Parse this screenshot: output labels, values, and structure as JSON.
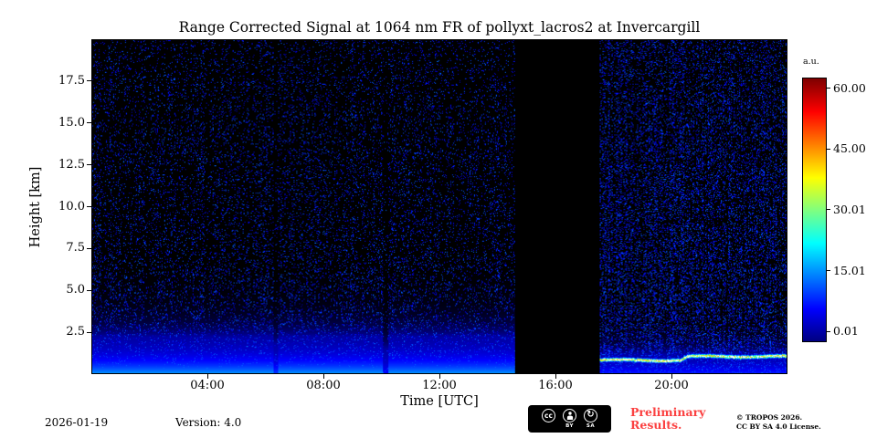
{
  "chart_data": {
    "type": "heatmap",
    "title": "Range Corrected Signal at 1064 nm FR of pollyxt_lacros2 at Invercargill",
    "xlabel": "Time [UTC]",
    "ylabel": "Height [km]",
    "x_range_hours": [
      0,
      24
    ],
    "x_ticks": [
      {
        "label": "04:00",
        "hour": 4
      },
      {
        "label": "08:00",
        "hour": 8
      },
      {
        "label": "12:00",
        "hour": 12
      },
      {
        "label": "16:00",
        "hour": 16
      },
      {
        "label": "20:00",
        "hour": 20
      }
    ],
    "y_range_km": [
      0,
      20
    ],
    "y_ticks": [
      {
        "label": "2.5",
        "km": 2.5
      },
      {
        "label": "5.0",
        "km": 5.0
      },
      {
        "label": "7.5",
        "km": 7.5
      },
      {
        "label": "10.0",
        "km": 10.0
      },
      {
        "label": "12.5",
        "km": 12.5
      },
      {
        "label": "15.0",
        "km": 15.0
      },
      {
        "label": "17.5",
        "km": 17.5
      }
    ],
    "colorbar": {
      "label": "a.u.",
      "colormap": "jet",
      "vmin": 0.01,
      "vmax": 60,
      "ticks": [
        {
          "label": "60.00",
          "value": 60.0
        },
        {
          "label": "45.00",
          "value": 45.0
        },
        {
          "label": "30.01",
          "value": 30.01
        },
        {
          "label": "15.01",
          "value": 15.01
        },
        {
          "label": "0.01",
          "value": 0.01
        }
      ]
    },
    "features": {
      "background": "black with sparse blue noise speckles, denser after the data gap",
      "data_gap_hours": [
        14.6,
        17.55
      ],
      "near_surface_signal": {
        "hours": [
          0,
          14.6
        ],
        "top_km": 4.0,
        "peak_value": 16
      },
      "attenuated_streak_hours": [
        6.35,
        10.15
      ],
      "aerosol_layer": {
        "hours": [
          17.55,
          24
        ],
        "height_km_start": 0.78,
        "height_km_end": 1.0,
        "step_hour": 20.3,
        "peak_value": 44
      }
    }
  },
  "colors": {
    "background": "#ffffff",
    "axes_text": "#000000",
    "preliminary_text": "#fb4040"
  },
  "footer": {
    "date": "2026-01-19",
    "version": "Version: 4.0",
    "preliminary_line1": "Preliminary",
    "preliminary_line2": "Results.",
    "copyright_line1": "© TROPOS 2026.",
    "copyright_line2": "CC BY SA 4.0 License.",
    "cc_badge": {
      "cc": "cc",
      "by": "BY",
      "sa": "SA"
    }
  }
}
